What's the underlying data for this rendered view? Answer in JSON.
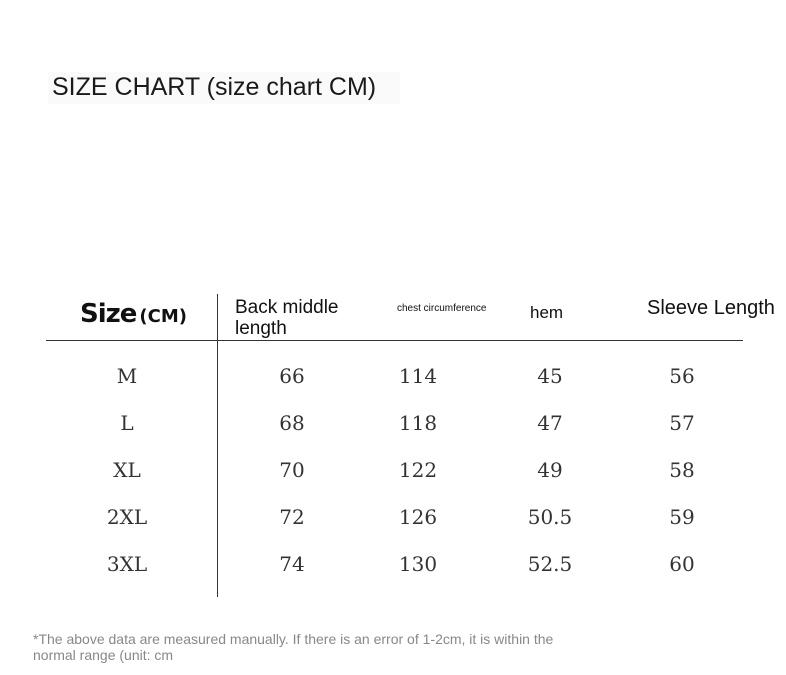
{
  "title": "SIZE CHART (size chart CM)",
  "table": {
    "headers": {
      "size": "Size",
      "size_unit": "(CM)",
      "back_middle_length": "Back middle length",
      "chest_circumference": "chest circumference",
      "hem": "hem",
      "sleeve_length": "Sleeve Length"
    },
    "rows": [
      [
        "M",
        "66",
        "114",
        "45",
        "56"
      ],
      [
        "L",
        "68",
        "118",
        "47",
        "57"
      ],
      [
        "XL",
        "70",
        "122",
        "49",
        "58"
      ],
      [
        "2XL",
        "72",
        "126",
        "50.5",
        "59"
      ],
      [
        "3XL",
        "74",
        "130",
        "52.5",
        "60"
      ]
    ]
  },
  "note": "*The above data are measured manually. If there is an error of 1-2cm, it is within the normal range (unit: cm"
}
